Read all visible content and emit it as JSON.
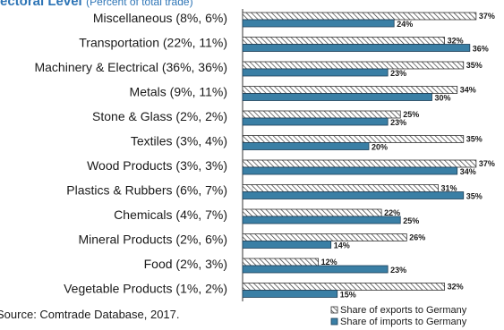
{
  "title": {
    "main": "ectoral Level",
    "sub": "(Percent of total trade)"
  },
  "source": "Source: Comtrade Database, 2017.",
  "colors": {
    "exports_hatch": "#3a3a3a",
    "imports_fill": "#3a7fa5",
    "imports_stroke": "#1f3f57",
    "title": "#2e75b6"
  },
  "chart_data": {
    "type": "bar",
    "orientation": "horizontal",
    "categories": [
      "Miscellaneous (8%, 6%)",
      "Transportation (22%, 11%)",
      "Machinery & Electrical (36%, 36%)",
      "Metals (9%, 11%)",
      "Stone & Glass (2%, 2%)",
      "Textiles (3%, 4%)",
      "Wood Products (3%, 3%)",
      "Plastics & Rubbers (6%, 7%)",
      "Chemicals (4%, 7%)",
      "Mineral Products (2%, 6%)",
      "Food (2%, 3%)",
      "Vegetable Products (1%, 2%)"
    ],
    "series": [
      {
        "name": "Share of exports to Germany",
        "pattern": "hatched",
        "values": [
          37,
          32,
          35,
          34,
          25,
          35,
          37,
          31,
          22,
          26,
          12,
          32
        ],
        "labels": [
          "37%",
          "32%",
          "35%",
          "34%",
          "25%",
          "35%",
          "37%",
          "31%",
          "22%",
          "26%",
          "12%",
          "32%"
        ]
      },
      {
        "name": "Share of imports to Germany",
        "pattern": "solid",
        "values": [
          24,
          36,
          23,
          30,
          23,
          20,
          34,
          35,
          25,
          14,
          23,
          15
        ],
        "labels": [
          "24%",
          "36%",
          "23%",
          "30%",
          "23%",
          "20%",
          "34%",
          "35%",
          "25%",
          "14%",
          "23%",
          "15%"
        ]
      }
    ],
    "xlim": [
      0,
      40
    ],
    "legend_position": "bottom-right",
    "grid": false
  }
}
